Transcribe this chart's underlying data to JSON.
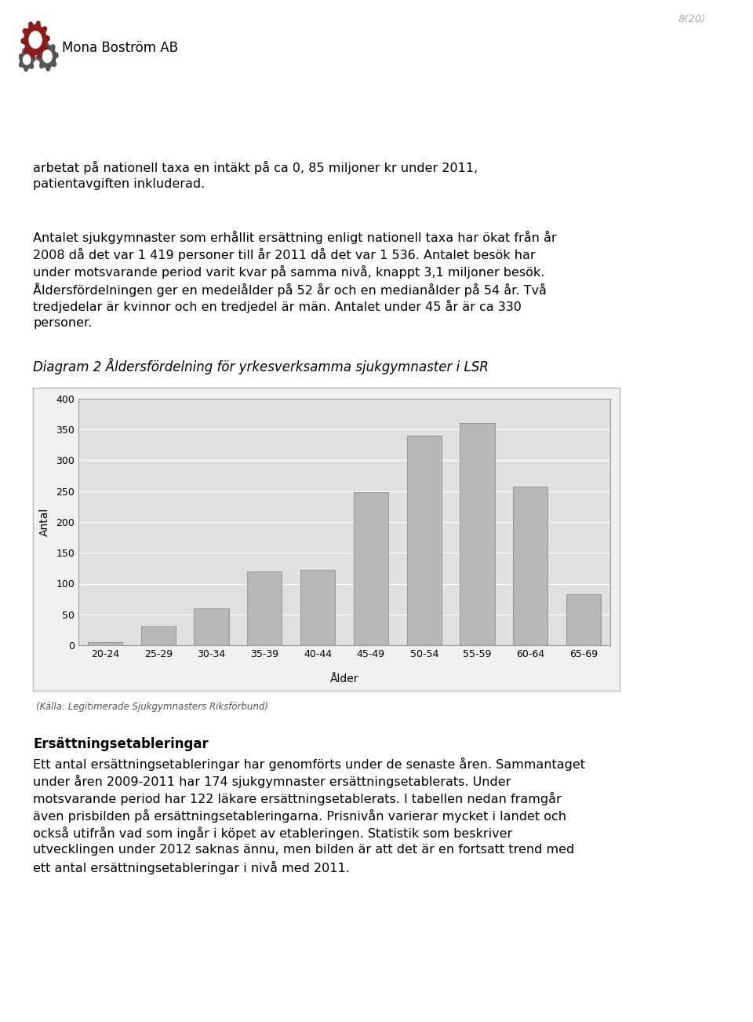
{
  "categories": [
    "20-24",
    "25-29",
    "30-34",
    "35-39",
    "40-44",
    "45-49",
    "50-54",
    "55-59",
    "60-64",
    "65-69"
  ],
  "values": [
    5,
    30,
    60,
    120,
    122,
    248,
    340,
    360,
    257,
    83
  ],
  "bar_color": "#b8b8b8",
  "bar_edge_color": "#999999",
  "plot_bg_color": "#e0e0e0",
  "outer_box_color": "#cccccc",
  "ylim": [
    0,
    400
  ],
  "yticks": [
    0,
    50,
    100,
    150,
    200,
    250,
    300,
    350,
    400
  ],
  "ylabel": "Antal",
  "xlabel": "Ålder",
  "diagram_title": "Diagram 2 Åldersfördelning för yrkesverksamma sjukgymnaster i LSR",
  "source_note": "(Källa: Legitimerade Sjukgymnasters Riksförbund)",
  "page_number": "8(20)",
  "logo_text": "Mona Boström AB",
  "header_line1": "arbetat på nationell taxa en intäkt på ca 0, 85 miljoner kr under 2011,",
  "header_line2": "patientavgiften inkluderad.",
  "para1_lines": [
    "Antalet sjukgymnaster som erhållit ersättning enligt nationell taxa har ökat från år",
    "2008 då det var 1 419 personer till år 2011 då det var 1 536. Antalet besök har",
    "under motsvarande period varit kvar på samma nivå, knappt 3,1 miljoner besök.",
    "Åldersfördelningen ger en medelålder på 52 år och en medianålder på 54 år. Två",
    "tredjedelar är kvinnor och en tredjedel är män. Antalet under 45 år är ca 330",
    "personer."
  ],
  "section_title": "Ersättningsetableringar",
  "para2_lines": [
    "Ett antal ersättningsetableringar har genomförts under de senaste åren. Sammantaget",
    "under åren 2009-2011 har 174 sjukgymnaster ersättningsetablerats. Under",
    "motsvarande period har 122 läkare ersättningsetablerats. I tabellen nedan framgår",
    "även prisbilden på ersättningsetableringarna. Prisnivån varierar mycket i landet och",
    "också utifrån vad som ingår i köpet av etableringen. Statistik som beskriver",
    "utvecklingen under 2012 saknas ännu, men bilden är att det är en fortsatt trend med",
    "ett antal ersättningsetableringar i nivå med 2011."
  ],
  "text_fontsize": 11.5,
  "title_fontsize": 12,
  "section_fontsize": 12
}
